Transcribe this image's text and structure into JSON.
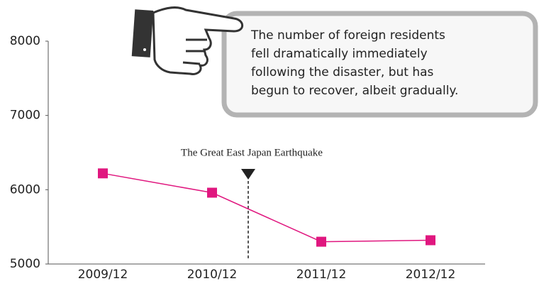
{
  "chart_data": {
    "type": "line",
    "categories": [
      "2009/12",
      "2010/12",
      "2011/12",
      "2012/12"
    ],
    "values": [
      6220,
      5960,
      5300,
      5320
    ],
    "color": "#e0177f",
    "ylim": [
      5000,
      8000
    ],
    "yticks": [
      5000,
      6000,
      7000,
      8000
    ],
    "annotation": "The Great East Japan Earthquake",
    "callout": [
      "The number of foreign residents",
      "fell dramatically immediately",
      "following the disaster, but has",
      "begun to recover, albeit gradually."
    ]
  }
}
